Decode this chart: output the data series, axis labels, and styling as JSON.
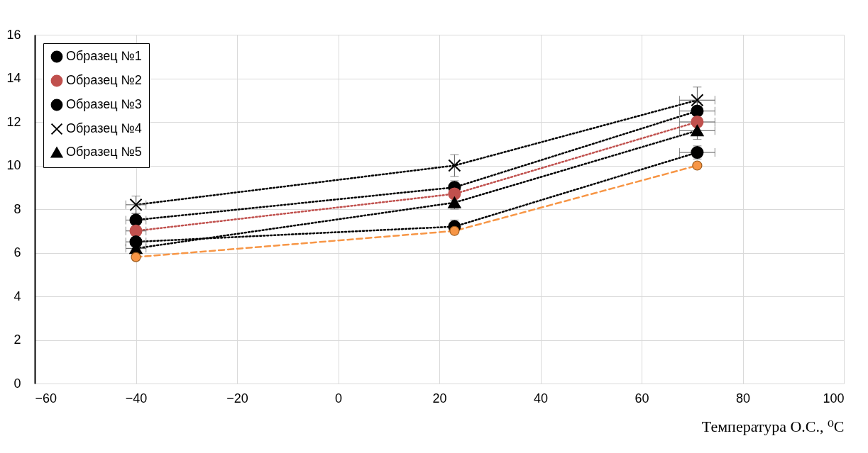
{
  "chart_data": {
    "type": "line",
    "xlabel": "Температура О.С., ⁰C",
    "xlim": [
      -60,
      100
    ],
    "xticks": [
      -60,
      -40,
      -20,
      0,
      20,
      40,
      60,
      80,
      100
    ],
    "ylim": [
      0,
      16
    ],
    "yticks": [
      0,
      2,
      4,
      6,
      8,
      10,
      12,
      14,
      16
    ],
    "grid": true,
    "legend": "top left",
    "x": [
      -40,
      23,
      71
    ],
    "series": [
      {
        "name": "Образец №1",
        "color": "#000000",
        "marker": "circle",
        "line_style": "dotted",
        "values": [
          7.5,
          9.0,
          12.5
        ],
        "errors": [
          0.3,
          0.3,
          0.4
        ],
        "xerrors": [
          2,
          null,
          3.5
        ]
      },
      {
        "name": "Образец №2",
        "color": "#c0504d",
        "marker": "circle",
        "line_style": "dotted",
        "values": [
          7.0,
          8.7,
          12.0
        ],
        "errors": [
          0.3,
          0.3,
          0.4
        ],
        "xerrors": [
          2,
          null,
          3.5
        ]
      },
      {
        "name": "Образец №3",
        "color": "#000000",
        "marker": "circle",
        "line_style": "dotted",
        "values": [
          6.5,
          7.2,
          10.6
        ],
        "errors": [
          0.3,
          0.3,
          0.3
        ],
        "xerrors": [
          2,
          null,
          3.5
        ]
      },
      {
        "name": "Образец №4",
        "color": "#000000",
        "marker": "cross",
        "line_style": "dotted",
        "values": [
          8.2,
          10.0,
          13.0
        ],
        "errors": [
          0.4,
          0.5,
          0.6
        ],
        "xerrors": [
          2,
          null,
          3.5
        ]
      },
      {
        "name": "Образец №5",
        "color": "#000000",
        "marker": "triangle",
        "line_style": "dotted",
        "values": [
          6.2,
          8.3,
          11.6
        ],
        "errors": [
          0.3,
          0.3,
          0.4
        ],
        "xerrors": [
          2,
          null,
          3.5
        ]
      },
      {
        "color": "#f79646",
        "marker": "circle",
        "line_style": "dashed",
        "values": [
          5.8,
          7.0,
          10.0
        ]
      }
    ]
  }
}
